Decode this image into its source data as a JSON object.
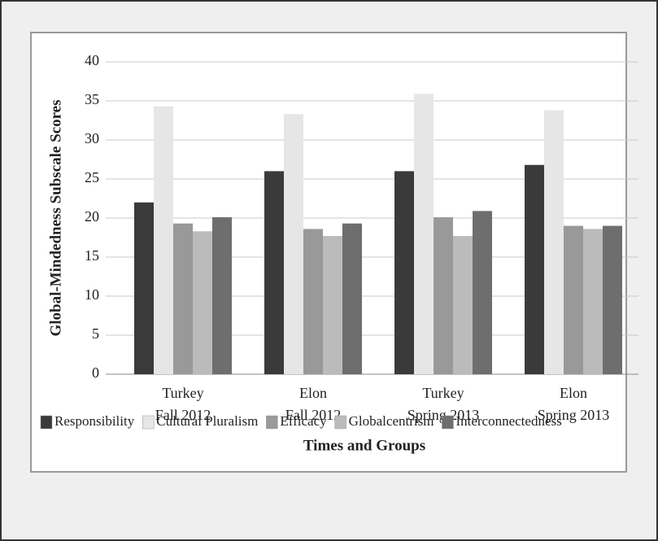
{
  "chart_data": {
    "type": "bar",
    "y_label": "Global-Mindedness Subscale Scores",
    "x_label": "Times and Groups",
    "categories": [
      [
        "Turkey",
        "Fall 2012"
      ],
      [
        "Elon",
        "Fall 2012"
      ],
      [
        "Turkey",
        "Spring 2013"
      ],
      [
        "Elon",
        "Spring 2013"
      ]
    ],
    "series": [
      {
        "name": "Responsibility",
        "color": "#3a3a3a",
        "values": [
          22.0,
          26.0,
          26.0,
          26.8
        ]
      },
      {
        "name": "Cultural Pluralism",
        "color": "#e6e6e6",
        "values": [
          34.3,
          33.3,
          35.9,
          33.8
        ]
      },
      {
        "name": "Efficacy",
        "color": "#999999",
        "values": [
          19.3,
          18.6,
          20.1,
          19.0
        ]
      },
      {
        "name": "Globalcentrism",
        "color": "#bbbbbb",
        "values": [
          18.3,
          17.7,
          17.7,
          18.6
        ]
      },
      {
        "name": "Interconnectedness",
        "color": "#6e6e6e",
        "values": [
          20.1,
          19.3,
          20.9,
          19.0
        ]
      }
    ],
    "ylim": [
      0,
      40
    ],
    "yticks": [
      0,
      5,
      10,
      15,
      20,
      25,
      30,
      35,
      40
    ],
    "grid": true,
    "legend": "bottom"
  }
}
